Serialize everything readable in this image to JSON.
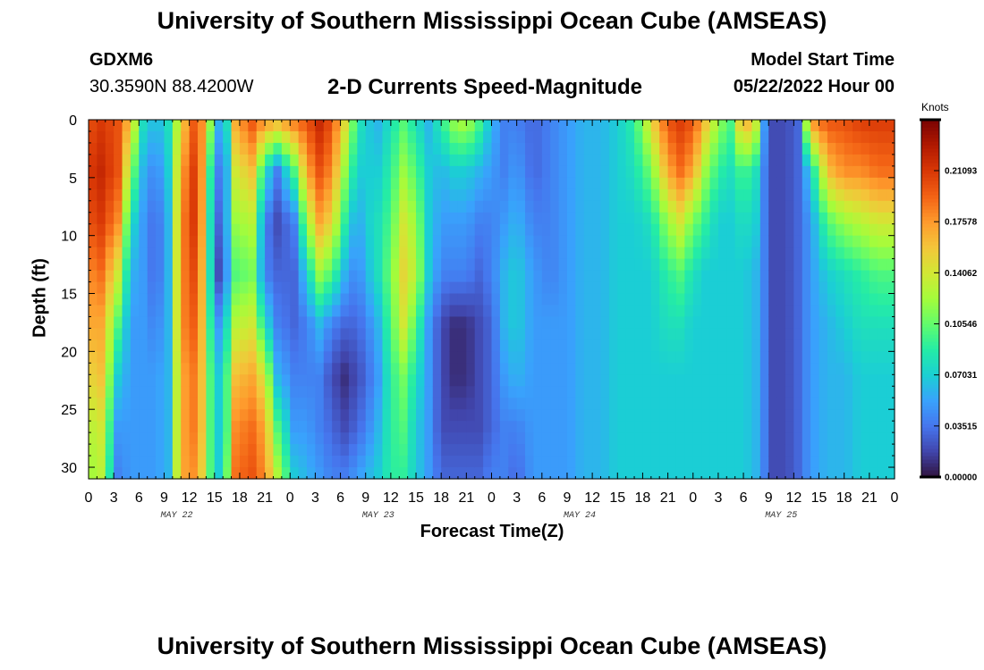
{
  "header": {
    "title": "University of Southern Mississippi Ocean Cube (AMSEAS)",
    "station": "GDXM6",
    "coordinates": "30.3590N  88.4200W",
    "subtitle": "2-D Currents Speed-Magnitude",
    "start_label": "Model Start Time",
    "start_value": "05/22/2022 Hour 00",
    "footer_title": "University of Southern Mississippi Ocean Cube (AMSEAS)"
  },
  "chart_data": {
    "type": "heatmap",
    "title": "2-D Currents Speed-Magnitude",
    "xlabel": "Forecast Time(Z)",
    "ylabel": "Depth (ft)",
    "x_range_hours": [
      0,
      96
    ],
    "ylim": [
      0,
      31
    ],
    "x_ticks": [
      "0",
      "3",
      "6",
      "9",
      "12",
      "15",
      "18",
      "21",
      "0",
      "3",
      "6",
      "9",
      "12",
      "15",
      "18",
      "21",
      "0",
      "3",
      "6",
      "9",
      "12",
      "15",
      "18",
      "21",
      "0",
      "3",
      "6",
      "9",
      "12",
      "15",
      "18",
      "21",
      "0"
    ],
    "y_ticks": [
      "0",
      "5",
      "10",
      "15",
      "20",
      "25",
      "30"
    ],
    "day_labels": [
      "MAY 22",
      "MAY 23",
      "MAY 24",
      "MAY 25"
    ],
    "colorbar": {
      "unit": "Knots",
      "min": 0,
      "max": 0.246,
      "ticks": [
        "0.00000",
        "0.03515",
        "0.07031",
        "0.10546",
        "0.14062",
        "0.17578",
        "0.21093"
      ]
    },
    "palette": [
      "#30123b",
      "#4145ab",
      "#4675ed",
      "#39a2fc",
      "#1bcfd4",
      "#24eca6",
      "#61fc6c",
      "#a4fc3b",
      "#d1e834",
      "#f3c63a",
      "#fe9b2d",
      "#f36315",
      "#d93806",
      "#b11901",
      "#7a0402"
    ],
    "profiles": [
      [
        0.0,
        [
          0.2,
          0.21,
          0.2,
          0.18,
          0.17,
          0.15,
          0.13,
          0.12
        ]
      ],
      [
        1.5,
        [
          0.21,
          0.22,
          0.21,
          0.19,
          0.17,
          0.16,
          0.14,
          0.13
        ]
      ],
      [
        3.5,
        [
          0.2,
          0.2,
          0.18,
          0.14,
          0.1,
          0.07,
          0.05,
          0.04
        ]
      ],
      [
        5.0,
        [
          0.16,
          0.12,
          0.08,
          0.06,
          0.05,
          0.05,
          0.05,
          0.05
        ]
      ],
      [
        6.5,
        [
          0.08,
          0.06,
          0.05,
          0.05,
          0.05,
          0.05,
          0.05,
          0.05
        ]
      ],
      [
        8.0,
        [
          0.06,
          0.04,
          0.03,
          0.03,
          0.04,
          0.05,
          0.05,
          0.05
        ]
      ],
      [
        9.5,
        [
          0.08,
          0.07,
          0.06,
          0.06,
          0.06,
          0.06,
          0.06,
          0.06
        ]
      ],
      [
        11.0,
        [
          0.15,
          0.17,
          0.18,
          0.18,
          0.18,
          0.17,
          0.17,
          0.17
        ]
      ],
      [
        13.0,
        [
          0.21,
          0.22,
          0.22,
          0.21,
          0.2,
          0.19,
          0.19,
          0.18
        ]
      ],
      [
        14.5,
        [
          0.12,
          0.09,
          0.08,
          0.08,
          0.09,
          0.1,
          0.1,
          0.1
        ]
      ],
      [
        15.5,
        [
          0.06,
          0.04,
          0.03,
          0.02,
          0.05,
          0.07,
          0.07,
          0.07
        ]
      ],
      [
        16.5,
        [
          0.08,
          0.06,
          0.06,
          0.05,
          0.08,
          0.1,
          0.1,
          0.11
        ]
      ],
      [
        17.5,
        [
          0.17,
          0.14,
          0.12,
          0.1,
          0.13,
          0.16,
          0.18,
          0.19
        ]
      ],
      [
        19.5,
        [
          0.2,
          0.16,
          0.13,
          0.11,
          0.14,
          0.17,
          0.19,
          0.2
        ]
      ],
      [
        21.0,
        [
          0.18,
          0.08,
          0.04,
          0.04,
          0.08,
          0.14,
          0.17,
          0.18
        ]
      ],
      [
        22.5,
        [
          0.17,
          0.04,
          0.02,
          0.03,
          0.04,
          0.06,
          0.1,
          0.13
        ]
      ],
      [
        24.5,
        [
          0.19,
          0.1,
          0.04,
          0.03,
          0.03,
          0.04,
          0.05,
          0.07
        ]
      ],
      [
        26.0,
        [
          0.2,
          0.17,
          0.12,
          0.07,
          0.04,
          0.04,
          0.05,
          0.06
        ]
      ],
      [
        27.5,
        [
          0.22,
          0.2,
          0.17,
          0.12,
          0.06,
          0.04,
          0.04,
          0.05
        ]
      ],
      [
        29.0,
        [
          0.2,
          0.18,
          0.15,
          0.1,
          0.04,
          0.02,
          0.03,
          0.04
        ]
      ],
      [
        30.5,
        [
          0.15,
          0.12,
          0.09,
          0.06,
          0.03,
          0.01,
          0.02,
          0.04
        ]
      ],
      [
        32.0,
        [
          0.09,
          0.07,
          0.05,
          0.04,
          0.03,
          0.02,
          0.03,
          0.05
        ]
      ],
      [
        33.0,
        [
          0.07,
          0.07,
          0.07,
          0.06,
          0.04,
          0.03,
          0.04,
          0.06
        ]
      ],
      [
        34.5,
        [
          0.06,
          0.07,
          0.08,
          0.08,
          0.06,
          0.05,
          0.06,
          0.07
        ]
      ],
      [
        36.0,
        [
          0.08,
          0.09,
          0.1,
          0.11,
          0.1,
          0.09,
          0.09,
          0.09
        ]
      ],
      [
        37.5,
        [
          0.1,
          0.12,
          0.14,
          0.15,
          0.14,
          0.11,
          0.1,
          0.09
        ]
      ],
      [
        39.0,
        [
          0.08,
          0.1,
          0.12,
          0.13,
          0.1,
          0.08,
          0.07,
          0.07
        ]
      ],
      [
        40.5,
        [
          0.06,
          0.07,
          0.07,
          0.07,
          0.05,
          0.05,
          0.05,
          0.05
        ]
      ],
      [
        42.0,
        [
          0.09,
          0.06,
          0.05,
          0.04,
          0.02,
          0.02,
          0.02,
          0.03
        ]
      ],
      [
        43.5,
        [
          0.12,
          0.07,
          0.05,
          0.04,
          0.01,
          0.01,
          0.02,
          0.03
        ]
      ],
      [
        45.0,
        [
          0.13,
          0.07,
          0.05,
          0.04,
          0.01,
          0.01,
          0.02,
          0.03
        ]
      ],
      [
        46.5,
        [
          0.1,
          0.06,
          0.04,
          0.03,
          0.02,
          0.02,
          0.02,
          0.03
        ]
      ],
      [
        48.0,
        [
          0.06,
          0.05,
          0.04,
          0.04,
          0.03,
          0.03,
          0.03,
          0.04
        ]
      ],
      [
        49.5,
        [
          0.04,
          0.04,
          0.05,
          0.06,
          0.06,
          0.05,
          0.04,
          0.04
        ]
      ],
      [
        51.0,
        [
          0.04,
          0.05,
          0.06,
          0.07,
          0.07,
          0.06,
          0.04,
          0.03
        ]
      ],
      [
        53.0,
        [
          0.03,
          0.03,
          0.04,
          0.05,
          0.05,
          0.05,
          0.05,
          0.05
        ]
      ],
      [
        55.0,
        [
          0.04,
          0.04,
          0.04,
          0.04,
          0.05,
          0.05,
          0.05,
          0.05
        ]
      ],
      [
        57.0,
        [
          0.05,
          0.05,
          0.05,
          0.05,
          0.05,
          0.05,
          0.05,
          0.05
        ]
      ],
      [
        59.0,
        [
          0.06,
          0.06,
          0.06,
          0.06,
          0.06,
          0.06,
          0.06,
          0.06
        ]
      ],
      [
        61.0,
        [
          0.06,
          0.06,
          0.06,
          0.06,
          0.06,
          0.06,
          0.06,
          0.06
        ]
      ],
      [
        63.0,
        [
          0.07,
          0.07,
          0.07,
          0.07,
          0.07,
          0.07,
          0.07,
          0.07
        ]
      ],
      [
        65.0,
        [
          0.09,
          0.08,
          0.07,
          0.07,
          0.07,
          0.07,
          0.07,
          0.07
        ]
      ],
      [
        67.0,
        [
          0.15,
          0.11,
          0.08,
          0.07,
          0.07,
          0.07,
          0.07,
          0.07
        ]
      ],
      [
        69.0,
        [
          0.2,
          0.17,
          0.12,
          0.09,
          0.08,
          0.07,
          0.07,
          0.07
        ]
      ],
      [
        70.5,
        [
          0.21,
          0.19,
          0.14,
          0.1,
          0.08,
          0.07,
          0.07,
          0.07
        ]
      ],
      [
        72.0,
        [
          0.2,
          0.17,
          0.11,
          0.08,
          0.07,
          0.07,
          0.07,
          0.07
        ]
      ],
      [
        73.5,
        [
          0.16,
          0.12,
          0.09,
          0.07,
          0.07,
          0.07,
          0.07,
          0.07
        ]
      ],
      [
        75.0,
        [
          0.12,
          0.09,
          0.07,
          0.07,
          0.07,
          0.07,
          0.07,
          0.07
        ]
      ],
      [
        76.5,
        [
          0.1,
          0.08,
          0.07,
          0.07,
          0.07,
          0.07,
          0.07,
          0.07
        ]
      ],
      [
        78.0,
        [
          0.18,
          0.1,
          0.08,
          0.07,
          0.07,
          0.07,
          0.07,
          0.07
        ]
      ],
      [
        79.5,
        [
          0.14,
          0.08,
          0.07,
          0.06,
          0.06,
          0.06,
          0.06,
          0.06
        ]
      ],
      [
        80.5,
        [
          0.05,
          0.04,
          0.04,
          0.04,
          0.04,
          0.04,
          0.04,
          0.04
        ]
      ],
      [
        81.5,
        [
          0.02,
          0.02,
          0.02,
          0.02,
          0.02,
          0.02,
          0.02,
          0.02
        ]
      ],
      [
        83.0,
        [
          0.02,
          0.02,
          0.02,
          0.02,
          0.02,
          0.02,
          0.02,
          0.02
        ]
      ],
      [
        84.5,
        [
          0.03,
          0.03,
          0.03,
          0.03,
          0.03,
          0.03,
          0.03,
          0.03
        ]
      ],
      [
        86.0,
        [
          0.18,
          0.07,
          0.05,
          0.05,
          0.05,
          0.05,
          0.05,
          0.05
        ]
      ],
      [
        88.0,
        [
          0.2,
          0.16,
          0.1,
          0.07,
          0.06,
          0.06,
          0.06,
          0.06
        ]
      ],
      [
        90.0,
        [
          0.2,
          0.18,
          0.12,
          0.08,
          0.07,
          0.06,
          0.06,
          0.06
        ]
      ],
      [
        92.0,
        [
          0.21,
          0.18,
          0.13,
          0.09,
          0.08,
          0.07,
          0.07,
          0.07
        ]
      ],
      [
        94.0,
        [
          0.21,
          0.19,
          0.14,
          0.1,
          0.08,
          0.07,
          0.07,
          0.07
        ]
      ],
      [
        96.0,
        [
          0.21,
          0.19,
          0.14,
          0.1,
          0.08,
          0.07,
          0.07,
          0.07
        ]
      ]
    ]
  }
}
